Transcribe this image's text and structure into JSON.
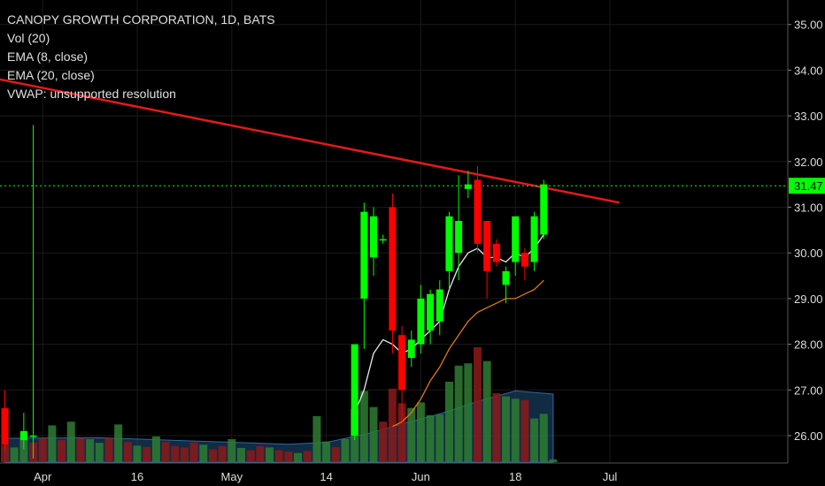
{
  "legend": {
    "title": "CANOPY GROWTH CORPORATION, 1D, BATS",
    "vol": "Vol (20)",
    "ema8": "EMA (8, close)",
    "ema20": "EMA (20, close)",
    "vwap": "VWAP: unsupported resolution"
  },
  "colors": {
    "background": "#000000",
    "up": "#00ff00",
    "down": "#ff0000",
    "vol_up": "#2e7d32",
    "vol_down": "#8b1a1a",
    "trendline": "#e31a1a",
    "ema8": "#e8e8e8",
    "ema20": "#e07a10",
    "vol_ma": "#1f4e79",
    "price_line": "#00ff00",
    "axis_text": "#dddddd"
  },
  "chart_data": {
    "type": "candlestick",
    "y_range": [
      25.4,
      35.6
    ],
    "y_ticks": [
      "26.00",
      "27.00",
      "28.00",
      "29.00",
      "30.00",
      "31.00",
      "32.00",
      "33.00",
      "34.00",
      "35.00"
    ],
    "x_ticks": [
      {
        "i": 4,
        "label": "Apr"
      },
      {
        "i": 14,
        "label": "16"
      },
      {
        "i": 24,
        "label": "May"
      },
      {
        "i": 34,
        "label": "14"
      },
      {
        "i": 44,
        "label": "Jun"
      },
      {
        "i": 54,
        "label": "18"
      },
      {
        "i": 64,
        "label": "Jul"
      }
    ],
    "last_price": 31.47,
    "last_price_label": "31.47",
    "candles": [
      {
        "i": 0,
        "o": 26.6,
        "h": 27.0,
        "l": 25.7,
        "c": 25.8
      },
      {
        "i": 2,
        "o": 25.9,
        "h": 26.5,
        "l": 25.7,
        "c": 26.1
      },
      {
        "i": 3,
        "o": 26.0,
        "h": 32.8,
        "l": 25.5,
        "c": 26.0
      },
      {
        "i": 37,
        "o": 26.0,
        "h": 28.0,
        "l": 25.9,
        "c": 28.0
      },
      {
        "i": 38,
        "o": 29.0,
        "h": 31.1,
        "l": 27.9,
        "c": 30.9
      },
      {
        "i": 39,
        "o": 29.9,
        "h": 31.0,
        "l": 29.5,
        "c": 30.8
      },
      {
        "i": 40,
        "o": 30.3,
        "h": 30.4,
        "l": 30.2,
        "c": 30.3
      },
      {
        "i": 41,
        "o": 31.0,
        "h": 31.3,
        "l": 27.8,
        "c": 28.3
      },
      {
        "i": 42,
        "o": 28.2,
        "h": 28.4,
        "l": 26.3,
        "c": 27.0
      },
      {
        "i": 43,
        "o": 27.7,
        "h": 28.3,
        "l": 27.5,
        "c": 28.1
      },
      {
        "i": 44,
        "o": 28.0,
        "h": 29.3,
        "l": 27.8,
        "c": 29.0
      },
      {
        "i": 45,
        "o": 28.3,
        "h": 29.2,
        "l": 28.0,
        "c": 29.1
      },
      {
        "i": 46,
        "o": 28.5,
        "h": 29.4,
        "l": 28.2,
        "c": 29.2
      },
      {
        "i": 47,
        "o": 29.6,
        "h": 30.9,
        "l": 29.2,
        "c": 30.8
      },
      {
        "i": 48,
        "o": 30.0,
        "h": 31.7,
        "l": 29.4,
        "c": 30.7
      },
      {
        "i": 49,
        "o": 31.4,
        "h": 31.8,
        "l": 31.2,
        "c": 31.5
      },
      {
        "i": 50,
        "o": 31.6,
        "h": 31.9,
        "l": 30.0,
        "c": 30.2
      },
      {
        "i": 51,
        "o": 30.7,
        "h": 30.7,
        "l": 29.0,
        "c": 29.6
      },
      {
        "i": 52,
        "o": 30.2,
        "h": 30.3,
        "l": 29.7,
        "c": 29.8
      },
      {
        "i": 53,
        "o": 29.3,
        "h": 29.7,
        "l": 28.9,
        "c": 29.6
      },
      {
        "i": 54,
        "o": 29.8,
        "h": 30.8,
        "l": 29.5,
        "c": 30.8
      },
      {
        "i": 55,
        "o": 30.0,
        "h": 30.1,
        "l": 29.4,
        "c": 29.7
      },
      {
        "i": 56,
        "o": 29.8,
        "h": 30.9,
        "l": 29.6,
        "c": 30.8
      },
      {
        "i": 57,
        "o": 30.4,
        "h": 31.6,
        "l": 30.3,
        "c": 31.5
      }
    ],
    "volume_panel": {
      "max_volume": 25,
      "bars": [
        {
          "i": 0,
          "v": 3.7,
          "dir": "down"
        },
        {
          "i": 1,
          "v": 3.2,
          "dir": "up"
        },
        {
          "i": 2,
          "v": 4.8,
          "dir": "up"
        },
        {
          "i": 3,
          "v": 4.3,
          "dir": "down"
        },
        {
          "i": 4,
          "v": 5.2,
          "dir": "down"
        },
        {
          "i": 5,
          "v": 8.0,
          "dir": "up"
        },
        {
          "i": 6,
          "v": 4.8,
          "dir": "down"
        },
        {
          "i": 7,
          "v": 8.8,
          "dir": "up"
        },
        {
          "i": 8,
          "v": 5.2,
          "dir": "down"
        },
        {
          "i": 9,
          "v": 5.0,
          "dir": "up"
        },
        {
          "i": 10,
          "v": 4.2,
          "dir": "up"
        },
        {
          "i": 11,
          "v": 5.2,
          "dir": "down"
        },
        {
          "i": 12,
          "v": 8.2,
          "dir": "up"
        },
        {
          "i": 13,
          "v": 4.4,
          "dir": "down"
        },
        {
          "i": 14,
          "v": 3.6,
          "dir": "up"
        },
        {
          "i": 15,
          "v": 3.3,
          "dir": "down"
        },
        {
          "i": 16,
          "v": 5.6,
          "dir": "up"
        },
        {
          "i": 17,
          "v": 4.4,
          "dir": "down"
        },
        {
          "i": 18,
          "v": 3.5,
          "dir": "down"
        },
        {
          "i": 19,
          "v": 3.2,
          "dir": "down"
        },
        {
          "i": 20,
          "v": 4.3,
          "dir": "down"
        },
        {
          "i": 21,
          "v": 3.8,
          "dir": "up"
        },
        {
          "i": 22,
          "v": 2.8,
          "dir": "down"
        },
        {
          "i": 23,
          "v": 3.5,
          "dir": "down"
        },
        {
          "i": 24,
          "v": 5.0,
          "dir": "up"
        },
        {
          "i": 25,
          "v": 3.1,
          "dir": "up"
        },
        {
          "i": 26,
          "v": 2.6,
          "dir": "down"
        },
        {
          "i": 27,
          "v": 3.5,
          "dir": "down"
        },
        {
          "i": 28,
          "v": 3.2,
          "dir": "up"
        },
        {
          "i": 29,
          "v": 2.6,
          "dir": "down"
        },
        {
          "i": 30,
          "v": 2.3,
          "dir": "down"
        },
        {
          "i": 31,
          "v": 2.0,
          "dir": "up"
        },
        {
          "i": 32,
          "v": 2.4,
          "dir": "down"
        },
        {
          "i": 33,
          "v": 10.0,
          "dir": "up"
        },
        {
          "i": 34,
          "v": 4.5,
          "dir": "up"
        },
        {
          "i": 35,
          "v": 3.3,
          "dir": "down"
        },
        {
          "i": 36,
          "v": 5.0,
          "dir": "up"
        },
        {
          "i": 37,
          "v": 11.5,
          "dir": "up"
        },
        {
          "i": 38,
          "v": 15.5,
          "dir": "up"
        },
        {
          "i": 39,
          "v": 12.0,
          "dir": "up"
        },
        {
          "i": 40,
          "v": 8.8,
          "dir": "down"
        },
        {
          "i": 41,
          "v": 16.0,
          "dir": "down"
        },
        {
          "i": 42,
          "v": 12.8,
          "dir": "down"
        },
        {
          "i": 43,
          "v": 11.8,
          "dir": "up"
        },
        {
          "i": 44,
          "v": 13.0,
          "dir": "up"
        },
        {
          "i": 45,
          "v": 10.2,
          "dir": "up"
        },
        {
          "i": 46,
          "v": 10.4,
          "dir": "up"
        },
        {
          "i": 47,
          "v": 17.5,
          "dir": "up"
        },
        {
          "i": 48,
          "v": 21.0,
          "dir": "up"
        },
        {
          "i": 49,
          "v": 21.5,
          "dir": "up"
        },
        {
          "i": 50,
          "v": 25.0,
          "dir": "down"
        },
        {
          "i": 51,
          "v": 22.0,
          "dir": "up"
        },
        {
          "i": 52,
          "v": 15.0,
          "dir": "down"
        },
        {
          "i": 53,
          "v": 14.3,
          "dir": "up"
        },
        {
          "i": 54,
          "v": 13.8,
          "dir": "up"
        },
        {
          "i": 55,
          "v": 13.5,
          "dir": "down"
        },
        {
          "i": 56,
          "v": 9.5,
          "dir": "up"
        },
        {
          "i": 57,
          "v": 10.5,
          "dir": "up"
        },
        {
          "i": 58,
          "v": 0.6,
          "dir": "up"
        }
      ],
      "vol_ma": [
        {
          "i": 0,
          "v": 5.2
        },
        {
          "i": 10,
          "v": 5.3
        },
        {
          "i": 20,
          "v": 4.6
        },
        {
          "i": 30,
          "v": 3.9
        },
        {
          "i": 34,
          "v": 4.3
        },
        {
          "i": 38,
          "v": 6.0
        },
        {
          "i": 42,
          "v": 8.3
        },
        {
          "i": 46,
          "v": 10.5
        },
        {
          "i": 50,
          "v": 13.2
        },
        {
          "i": 54,
          "v": 15.5
        },
        {
          "i": 58,
          "v": 14.8
        }
      ]
    },
    "ema8": [
      {
        "i": 37,
        "v": 26.5
      },
      {
        "i": 38,
        "v": 27.0
      },
      {
        "i": 39,
        "v": 27.8
      },
      {
        "i": 40,
        "v": 28.1
      },
      {
        "i": 41,
        "v": 28.0
      },
      {
        "i": 42,
        "v": 27.8
      },
      {
        "i": 43,
        "v": 27.9
      },
      {
        "i": 44,
        "v": 28.1
      },
      {
        "i": 45,
        "v": 28.3
      },
      {
        "i": 46,
        "v": 28.5
      },
      {
        "i": 47,
        "v": 29.2
      },
      {
        "i": 48,
        "v": 29.7
      },
      {
        "i": 49,
        "v": 30.0
      },
      {
        "i": 50,
        "v": 30.1
      },
      {
        "i": 51,
        "v": 29.9
      },
      {
        "i": 52,
        "v": 29.9
      },
      {
        "i": 53,
        "v": 29.8
      },
      {
        "i": 54,
        "v": 30.0
      },
      {
        "i": 55,
        "v": 29.9
      },
      {
        "i": 56,
        "v": 30.1
      },
      {
        "i": 57,
        "v": 30.4
      }
    ],
    "ema20": [
      {
        "i": 41,
        "v": 26.2
      },
      {
        "i": 42,
        "v": 26.3
      },
      {
        "i": 43,
        "v": 26.5
      },
      {
        "i": 44,
        "v": 26.8
      },
      {
        "i": 45,
        "v": 27.2
      },
      {
        "i": 46,
        "v": 27.5
      },
      {
        "i": 47,
        "v": 27.9
      },
      {
        "i": 48,
        "v": 28.2
      },
      {
        "i": 49,
        "v": 28.5
      },
      {
        "i": 50,
        "v": 28.7
      },
      {
        "i": 51,
        "v": 28.8
      },
      {
        "i": 52,
        "v": 28.9
      },
      {
        "i": 53,
        "v": 29.0
      },
      {
        "i": 54,
        "v": 29.0
      },
      {
        "i": 55,
        "v": 29.1
      },
      {
        "i": 56,
        "v": 29.2
      },
      {
        "i": 57,
        "v": 29.4
      }
    ],
    "trendline": {
      "from": {
        "i": -3,
        "v": 33.9
      },
      "to": {
        "i": 65,
        "v": 31.1
      }
    }
  }
}
